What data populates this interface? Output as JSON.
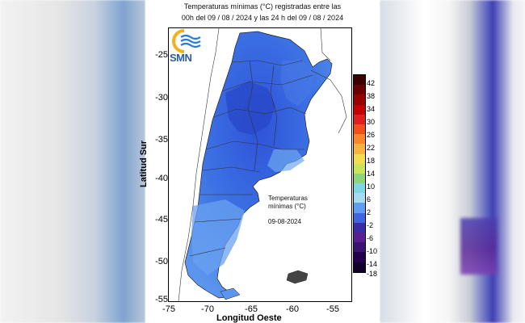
{
  "header": {
    "title_line1": "Temperaturas mínimas (°C) registradas entre las",
    "title_line2": "00h del 09 / 08 / 2024 y las 24 h del 09 / 08 / 2024"
  },
  "logo": {
    "text": "SMN"
  },
  "axes": {
    "y_ticks": [
      "-25",
      "-30",
      "-35",
      "-40",
      "-45",
      "-50",
      "-55"
    ],
    "x_ticks": [
      "-75",
      "-70",
      "-65",
      "-60",
      "-55"
    ],
    "y_label": "Latitud Sur",
    "x_label": "Longitud Oeste"
  },
  "annotation": {
    "line1": "Temperaturas",
    "line2": "mínimas (°C)",
    "date": "09-08-2024"
  },
  "legend": {
    "labels": [
      "42",
      "38",
      "34",
      "30",
      "26",
      "22",
      "18",
      "14",
      "10",
      "6",
      "2",
      "-2",
      "-6",
      "-10",
      "-14",
      "-18"
    ],
    "colors": [
      "#3a0000",
      "#6a0000",
      "#990000",
      "#c40000",
      "#e02020",
      "#f24e1e",
      "#f7872a",
      "#f5b342",
      "#f2dc52",
      "#c9e35a",
      "#8fd37a",
      "#7fd6e6",
      "#a6dcef",
      "#5f9cf2",
      "#3f66dd",
      "#3a2ca8",
      "#5a1f8f",
      "#3c1470",
      "#24004a",
      "#10002a"
    ]
  }
}
